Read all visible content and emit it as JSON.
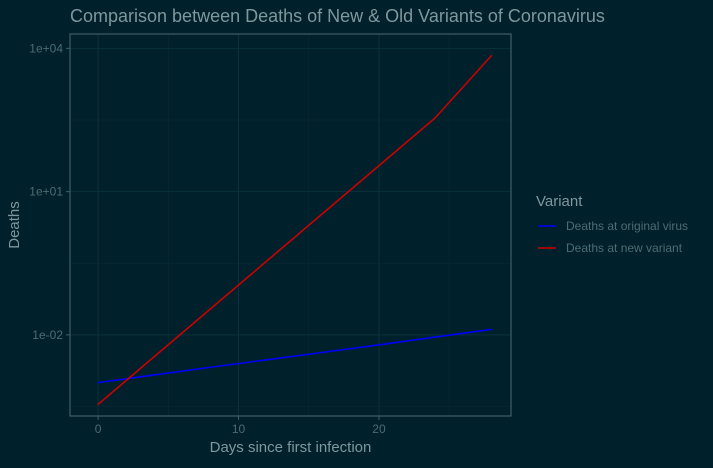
{
  "chart_data": {
    "type": "line",
    "title": "Comparison between Deaths of New & Old Variants of Coronavirus",
    "xlabel": "Days since first infection",
    "ylabel": "Deaths",
    "y_scale": "log10",
    "xlim": [
      -2,
      29.4
    ],
    "ylim": [
      0.0002,
      20000
    ],
    "x_ticks": [
      0,
      10,
      20
    ],
    "x_tick_labels": [
      "0",
      "10",
      "20"
    ],
    "y_ticks": [
      0.01,
      10,
      10000
    ],
    "y_tick_labels": [
      "1e-02",
      "1e+01",
      "1e+04"
    ],
    "grid": true,
    "legend": {
      "title": "Variant",
      "position": "right"
    },
    "series": [
      {
        "name": "Deaths at original virus",
        "color": "#0000ff",
        "x": [
          0,
          4,
          8,
          12,
          16,
          20,
          24,
          28
        ],
        "y": [
          0.001,
          0.00145,
          0.0021,
          0.003,
          0.0043,
          0.0062,
          0.009,
          0.013
        ]
      },
      {
        "name": "Deaths at new variant",
        "color": "#cc0000",
        "x": [
          0,
          4,
          8,
          12,
          16,
          20,
          24,
          28
        ],
        "y": [
          0.00035,
          0.0035,
          0.035,
          0.35,
          3.5,
          35,
          350,
          7000
        ]
      }
    ]
  }
}
